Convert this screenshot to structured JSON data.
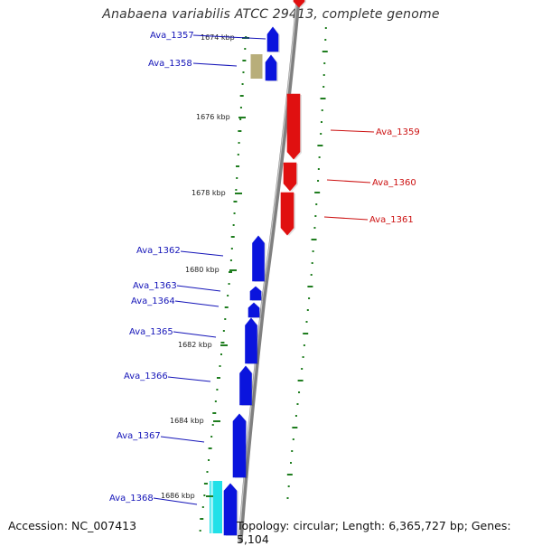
{
  "title": "Anabaena variabilis ATCC 29413, complete genome",
  "accession": "Accession: NC_007413",
  "topology": "Topology: circular; Length: 6,365,727 bp; Genes: 5,104",
  "colors": {
    "forward_cds": "#0a14dd",
    "reverse_cds": "#e01010",
    "rna_gene": "#b8ae7a",
    "other_gene": "#20e0e8",
    "backbone": "#808080",
    "gc_skew_marks": "#1f7d1f",
    "forward_label": "#1414b8",
    "reverse_label": "#cc1010"
  },
  "ticks": [
    "1674 kbp",
    "1676 kbp",
    "1678 kbp",
    "1680 kbp",
    "1682 kbp",
    "1684 kbp",
    "1686 kbp"
  ],
  "genes": [
    {
      "name": "Ava_1357",
      "strand": "forward"
    },
    {
      "name": "Ava_1358",
      "strand": "forward"
    },
    {
      "name": "Ava_1359",
      "strand": "reverse"
    },
    {
      "name": "Ava_1360",
      "strand": "reverse"
    },
    {
      "name": "Ava_1361",
      "strand": "reverse"
    },
    {
      "name": "Ava_1362",
      "strand": "forward"
    },
    {
      "name": "Ava_1363",
      "strand": "forward"
    },
    {
      "name": "Ava_1364",
      "strand": "forward"
    },
    {
      "name": "Ava_1365",
      "strand": "forward"
    },
    {
      "name": "Ava_1366",
      "strand": "forward"
    },
    {
      "name": "Ava_1367",
      "strand": "forward"
    },
    {
      "name": "Ava_1368",
      "strand": "forward"
    }
  ]
}
